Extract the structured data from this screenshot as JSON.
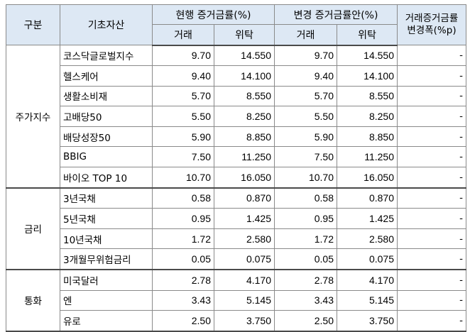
{
  "headers": {
    "category": "구분",
    "asset": "기초자산",
    "current_group": "현행 증거금률(%)",
    "proposed_group": "변경 증거금률안(%)",
    "change": "거래증거금률\n변경폭(%p)",
    "trade": "거래",
    "consign": "위탁"
  },
  "groups": [
    {
      "category": "주가지수",
      "rows": [
        {
          "asset": "코스닥글로벌지수",
          "cur_trade": "9.70",
          "cur_consign": "14.550",
          "new_trade": "9.70",
          "new_consign": "14.550",
          "change": "-"
        },
        {
          "asset": "헬스케어",
          "cur_trade": "9.40",
          "cur_consign": "14.100",
          "new_trade": "9.40",
          "new_consign": "14.100",
          "change": "-"
        },
        {
          "asset": "생활소비재",
          "cur_trade": "5.70",
          "cur_consign": "8.550",
          "new_trade": "5.70",
          "new_consign": "8.550",
          "change": "-"
        },
        {
          "asset": "고배당50",
          "cur_trade": "5.50",
          "cur_consign": "8.250",
          "new_trade": "5.50",
          "new_consign": "8.250",
          "change": "-"
        },
        {
          "asset": "배당성장50",
          "cur_trade": "5.90",
          "cur_consign": "8.850",
          "new_trade": "5.90",
          "new_consign": "8.850",
          "change": "-"
        },
        {
          "asset": "BBIG",
          "cur_trade": "7.50",
          "cur_consign": "11.250",
          "new_trade": "7.50",
          "new_consign": "11.250",
          "change": "-"
        },
        {
          "asset": "바이오 TOP 10",
          "cur_trade": "10.70",
          "cur_consign": "16.050",
          "new_trade": "10.70",
          "new_consign": "16.050",
          "change": "-"
        }
      ]
    },
    {
      "category": "금리",
      "rows": [
        {
          "asset": "3년국채",
          "cur_trade": "0.58",
          "cur_consign": "0.870",
          "new_trade": "0.58",
          "new_consign": "0.870",
          "change": "-"
        },
        {
          "asset": "5년국채",
          "cur_trade": "0.95",
          "cur_consign": "1.425",
          "new_trade": "0.95",
          "new_consign": "1.425",
          "change": "-"
        },
        {
          "asset": "10년국채",
          "cur_trade": "1.72",
          "cur_consign": "2.580",
          "new_trade": "1.72",
          "new_consign": "2.580",
          "change": "-"
        },
        {
          "asset": "3개월무위험금리",
          "cur_trade": "0.05",
          "cur_consign": "0.075",
          "new_trade": "0.05",
          "new_consign": "0.075",
          "change": "-"
        }
      ]
    },
    {
      "category": "통화",
      "rows": [
        {
          "asset": "미국달러",
          "cur_trade": "2.78",
          "cur_consign": "4.170",
          "new_trade": "2.78",
          "new_consign": "4.170",
          "change": "-"
        },
        {
          "asset": "엔",
          "cur_trade": "3.43",
          "cur_consign": "5.145",
          "new_trade": "3.43",
          "new_consign": "5.145",
          "change": "-"
        },
        {
          "asset": "유로",
          "cur_trade": "2.50",
          "cur_consign": "3.750",
          "new_trade": "2.50",
          "new_consign": "3.750",
          "change": "-"
        }
      ]
    }
  ]
}
